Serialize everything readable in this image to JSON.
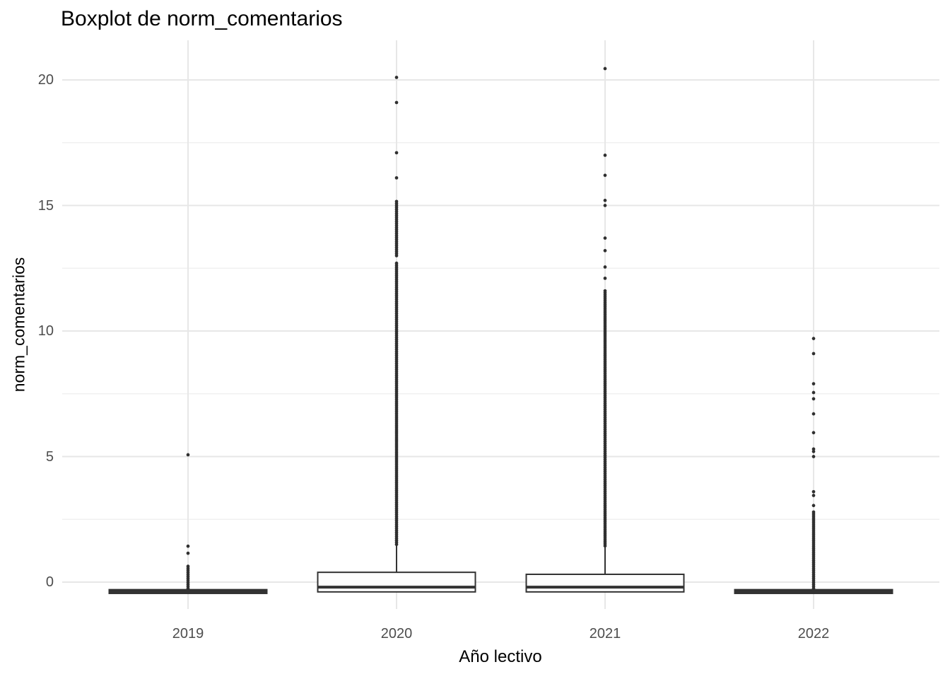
{
  "chart_data": {
    "type": "boxplot",
    "title": "Boxplot de norm_comentarios",
    "xlabel": "Año lectivo",
    "ylabel": "norm_comentarios",
    "categories": [
      "2019",
      "2020",
      "2021",
      "2022"
    ],
    "y_ticks": [
      0,
      5,
      10,
      15,
      20
    ],
    "y_tick_labels": [
      "0",
      "5",
      "10",
      "15",
      "20"
    ],
    "y_minor_ticks": [
      2.5,
      7.5,
      12.5,
      17.5
    ],
    "ylim": [
      -1.1,
      21.6
    ],
    "grid": "major-and-minor, no panel border, white background",
    "legend": "none",
    "dense_step": 0.08,
    "colors": {
      "box_border": "#333333",
      "box_fill": "#ffffff",
      "median_line": "#333333",
      "whisker": "#333333",
      "outlier_dot": "#303030",
      "grid_major": "#e7e7e7",
      "grid_minor": "#f0f0f0",
      "axis_text": "#4d4d4d",
      "title_text": "#000000",
      "background": "#ffffff"
    },
    "series": [
      {
        "label": "2019",
        "box": {
          "q1": -0.45,
          "median": -0.37,
          "q3": -0.3,
          "whisker_low": -0.45,
          "whisker_high": -0.3
        },
        "outliers": [
          5.07,
          1.43,
          1.15
        ],
        "outlier_dense_ranges": [
          {
            "from": -0.25,
            "to": 0.7
          }
        ]
      },
      {
        "label": "2020",
        "box": {
          "q1": -0.39,
          "median": -0.2,
          "q3": 0.39,
          "whisker_low": -0.39,
          "whisker_high": 1.46
        },
        "outliers": [
          20.1,
          19.1,
          17.1,
          16.1
        ],
        "outlier_dense_ranges": [
          {
            "from": 13.0,
            "to": 15.2
          },
          {
            "from": 1.5,
            "to": 12.72
          }
        ]
      },
      {
        "label": "2021",
        "box": {
          "q1": -0.39,
          "median": -0.2,
          "q3": 0.31,
          "whisker_low": -0.39,
          "whisker_high": 1.44
        },
        "outliers": [
          20.45,
          17.0,
          16.2,
          15.2,
          15.0,
          13.7,
          13.2,
          12.55,
          12.1
        ],
        "outlier_dense_ranges": [
          {
            "from": 1.44,
            "to": 11.6
          }
        ]
      },
      {
        "label": "2022",
        "box": {
          "q1": -0.45,
          "median": -0.37,
          "q3": -0.3,
          "whisker_low": -0.45,
          "whisker_high": -0.3
        },
        "outliers": [
          9.7,
          9.1,
          7.9,
          7.55,
          7.3,
          6.7,
          5.95,
          5.3,
          5.2,
          5.0,
          3.6,
          3.45,
          3.05
        ],
        "outlier_dense_ranges": [
          {
            "from": -0.25,
            "to": 2.8
          }
        ]
      }
    ]
  }
}
